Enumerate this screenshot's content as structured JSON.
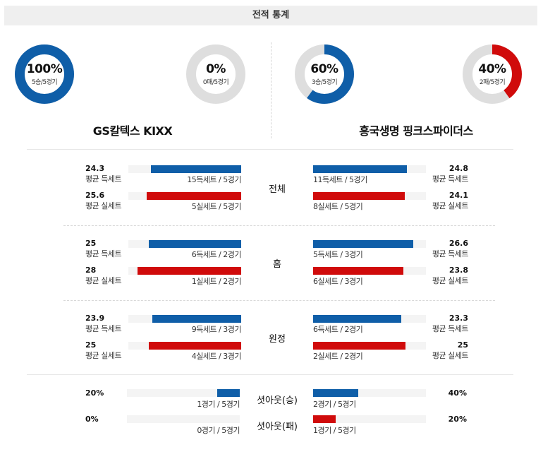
{
  "header": {
    "title": "전적 통계"
  },
  "colors": {
    "home": "#0f5ea8",
    "away": "#d00b0b",
    "ring": "#dedede"
  },
  "donuts": [
    {
      "pct": "100%",
      "sub": "5승/5경기",
      "fraction": 1.0,
      "color": "#0f5ea8"
    },
    {
      "pct": "0%",
      "sub": "0패/5경기",
      "fraction": 0.0,
      "color": "#d00b0b"
    },
    {
      "pct": "60%",
      "sub": "3승/5경기",
      "fraction": 0.6,
      "color": "#0f5ea8"
    },
    {
      "pct": "40%",
      "sub": "2패/5경기",
      "fraction": 0.4,
      "color": "#d00b0b"
    }
  ],
  "teams": {
    "left": "GS칼텍스 KIXX",
    "right": "흥국생명 핑크스파이더스"
  },
  "sections": [
    {
      "category": "전체",
      "rows": [
        {
          "left_value": "24.3",
          "left_label": "평균 득세트",
          "left_bar": "15득세트 / 5경기",
          "left_fill": 0.8,
          "right_value": "24.8",
          "right_label": "평균 득세트",
          "right_bar": "11득세트 / 5경기",
          "right_fill": 0.83
        },
        {
          "left_value": "25.6",
          "left_label": "평균 실세트",
          "left_bar": "5실세트 / 5경기",
          "left_fill": 0.84,
          "right_value": "24.1",
          "right_label": "평균 실세트",
          "right_bar": "8실세트 / 5경기",
          "right_fill": 0.81
        }
      ]
    },
    {
      "category": "홈",
      "rows": [
        {
          "left_value": "25",
          "left_label": "평균 득세트",
          "left_bar": "6득세트 / 2경기",
          "left_fill": 0.82,
          "right_value": "26.6",
          "right_label": "평균 득세트",
          "right_bar": "5득세트 / 3경기",
          "right_fill": 0.89
        },
        {
          "left_value": "28",
          "left_label": "평균 실세트",
          "left_bar": "1실세트 / 2경기",
          "left_fill": 0.92,
          "right_value": "23.8",
          "right_label": "평균 실세트",
          "right_bar": "6실세트 / 3경기",
          "right_fill": 0.8
        }
      ]
    },
    {
      "category": "원정",
      "rows": [
        {
          "left_value": "23.9",
          "left_label": "평균 득세트",
          "left_bar": "9득세트 / 3경기",
          "left_fill": 0.79,
          "right_value": "23.3",
          "right_label": "평균 득세트",
          "right_bar": "6득세트 / 2경기",
          "right_fill": 0.78
        },
        {
          "left_value": "25",
          "left_label": "평균 실세트",
          "left_bar": "4실세트 / 3경기",
          "left_fill": 0.82,
          "right_value": "25",
          "right_label": "평균 실세트",
          "right_bar": "2실세트 / 2경기",
          "right_fill": 0.82
        }
      ]
    }
  ],
  "shutout": [
    {
      "category": "셧아웃(승)",
      "left_value": "20%",
      "left_bar": "1경기 / 5경기",
      "left_fill": 0.2,
      "right_value": "40%",
      "right_bar": "2경기 / 5경기",
      "right_fill": 0.4
    },
    {
      "category": "셧아웃(패)",
      "left_value": "0%",
      "left_bar": "0경기 / 5경기",
      "left_fill": 0.0,
      "right_value": "20%",
      "right_bar": "1경기 / 5경기",
      "right_fill": 0.2
    }
  ]
}
